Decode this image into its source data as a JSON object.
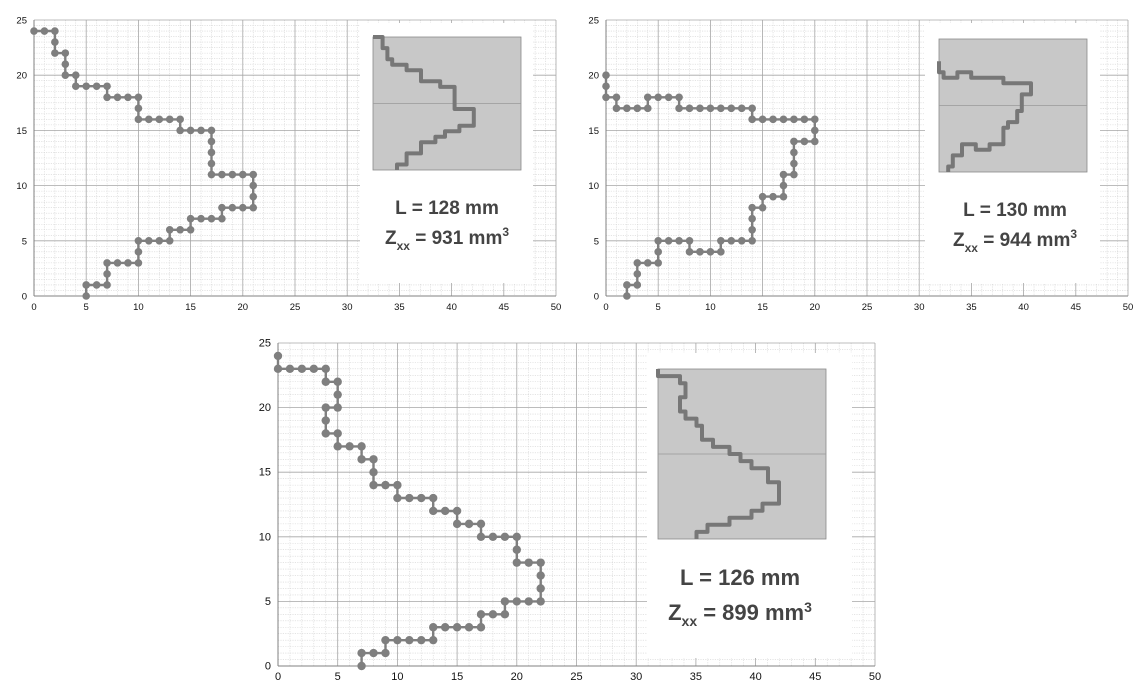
{
  "chart_data": [
    {
      "type": "scatter",
      "title": "",
      "xlabel": "",
      "ylabel": "",
      "xlim": [
        0,
        50
      ],
      "ylim": [
        0,
        25
      ],
      "x_ticks": [
        0,
        5,
        10,
        15,
        20,
        25,
        30,
        35,
        40,
        45,
        50
      ],
      "y_ticks": [
        0,
        5,
        10,
        15,
        20,
        25
      ],
      "grid": "minor gridlines every 1 unit",
      "series": [
        {
          "marker_color": "#7f7f7f",
          "points": [
            [
              0,
              24
            ],
            [
              1,
              24
            ],
            [
              2,
              24
            ],
            [
              2,
              23
            ],
            [
              2,
              22
            ],
            [
              3,
              22
            ],
            [
              3,
              21
            ],
            [
              3,
              20
            ],
            [
              4,
              20
            ],
            [
              4,
              19
            ],
            [
              5,
              19
            ],
            [
              6,
              19
            ],
            [
              7,
              19
            ],
            [
              7,
              18
            ],
            [
              8,
              18
            ],
            [
              9,
              18
            ],
            [
              10,
              18
            ],
            [
              10,
              17
            ],
            [
              10,
              16
            ],
            [
              11,
              16
            ],
            [
              12,
              16
            ],
            [
              13,
              16
            ],
            [
              14,
              16
            ],
            [
              14,
              15
            ],
            [
              15,
              15
            ],
            [
              16,
              15
            ],
            [
              17,
              15
            ],
            [
              17,
              14
            ],
            [
              17,
              13
            ],
            [
              17,
              12
            ],
            [
              17,
              11
            ],
            [
              18,
              11
            ],
            [
              19,
              11
            ],
            [
              20,
              11
            ],
            [
              21,
              11
            ],
            [
              21,
              10
            ],
            [
              21,
              9
            ],
            [
              21,
              8
            ],
            [
              20,
              8
            ],
            [
              19,
              8
            ],
            [
              18,
              8
            ],
            [
              18,
              7
            ],
            [
              17,
              7
            ],
            [
              16,
              7
            ],
            [
              15,
              7
            ],
            [
              15,
              6
            ],
            [
              14,
              6
            ],
            [
              13,
              6
            ],
            [
              13,
              5
            ],
            [
              12,
              5
            ],
            [
              11,
              5
            ],
            [
              10,
              5
            ],
            [
              10,
              4
            ],
            [
              10,
              3
            ],
            [
              9,
              3
            ],
            [
              8,
              3
            ],
            [
              7,
              3
            ],
            [
              7,
              2
            ],
            [
              7,
              1
            ],
            [
              6,
              1
            ],
            [
              5,
              1
            ],
            [
              5,
              0
            ]
          ]
        }
      ],
      "annotation": {
        "length_label": "L = 128 mm",
        "zxx_value": "931"
      }
    },
    {
      "type": "scatter",
      "title": "",
      "xlabel": "",
      "ylabel": "",
      "xlim": [
        0,
        50
      ],
      "ylim": [
        0,
        25
      ],
      "x_ticks": [
        0,
        5,
        10,
        15,
        20,
        25,
        30,
        35,
        40,
        45,
        50
      ],
      "y_ticks": [
        0,
        5,
        10,
        15,
        20,
        25
      ],
      "grid": "minor gridlines every 1 unit",
      "series": [
        {
          "marker_color": "#7f7f7f",
          "points": [
            [
              0,
              20
            ],
            [
              0,
              19
            ],
            [
              0,
              18
            ],
            [
              1,
              18
            ],
            [
              1,
              17
            ],
            [
              2,
              17
            ],
            [
              3,
              17
            ],
            [
              4,
              17
            ],
            [
              4,
              18
            ],
            [
              5,
              18
            ],
            [
              6,
              18
            ],
            [
              7,
              18
            ],
            [
              7,
              17
            ],
            [
              8,
              17
            ],
            [
              9,
              17
            ],
            [
              10,
              17
            ],
            [
              11,
              17
            ],
            [
              12,
              17
            ],
            [
              13,
              17
            ],
            [
              14,
              17
            ],
            [
              14,
              16
            ],
            [
              15,
              16
            ],
            [
              16,
              16
            ],
            [
              17,
              16
            ],
            [
              18,
              16
            ],
            [
              19,
              16
            ],
            [
              20,
              16
            ],
            [
              20,
              15
            ],
            [
              20,
              14
            ],
            [
              19,
              14
            ],
            [
              18,
              14
            ],
            [
              18,
              13
            ],
            [
              18,
              12
            ],
            [
              18,
              11
            ],
            [
              17,
              11
            ],
            [
              17,
              10
            ],
            [
              17,
              9
            ],
            [
              16,
              9
            ],
            [
              15,
              9
            ],
            [
              15,
              8
            ],
            [
              14,
              8
            ],
            [
              14,
              7
            ],
            [
              14,
              6
            ],
            [
              14,
              5
            ],
            [
              13,
              5
            ],
            [
              12,
              5
            ],
            [
              11,
              5
            ],
            [
              11,
              4
            ],
            [
              10,
              4
            ],
            [
              9,
              4
            ],
            [
              8,
              4
            ],
            [
              8,
              5
            ],
            [
              7,
              5
            ],
            [
              6,
              5
            ],
            [
              5,
              5
            ],
            [
              5,
              4
            ],
            [
              5,
              3
            ],
            [
              4,
              3
            ],
            [
              3,
              3
            ],
            [
              3,
              2
            ],
            [
              3,
              1
            ],
            [
              2,
              1
            ],
            [
              2,
              0
            ]
          ]
        }
      ],
      "annotation": {
        "length_label": "L = 130 mm",
        "zxx_value": "944"
      }
    },
    {
      "type": "scatter",
      "title": "",
      "xlabel": "",
      "ylabel": "",
      "xlim": [
        0,
        50
      ],
      "ylim": [
        0,
        25
      ],
      "x_ticks": [
        0,
        5,
        10,
        15,
        20,
        25,
        30,
        35,
        40,
        45,
        50
      ],
      "y_ticks": [
        0,
        5,
        10,
        15,
        20,
        25
      ],
      "grid": "minor gridlines every 1 unit",
      "series": [
        {
          "marker_color": "#7f7f7f",
          "points": [
            [
              0,
              24
            ],
            [
              0,
              23
            ],
            [
              1,
              23
            ],
            [
              2,
              23
            ],
            [
              3,
              23
            ],
            [
              4,
              23
            ],
            [
              4,
              22
            ],
            [
              5,
              22
            ],
            [
              5,
              21
            ],
            [
              5,
              20
            ],
            [
              4,
              20
            ],
            [
              4,
              19
            ],
            [
              4,
              18
            ],
            [
              5,
              18
            ],
            [
              5,
              17
            ],
            [
              6,
              17
            ],
            [
              7,
              17
            ],
            [
              7,
              16
            ],
            [
              8,
              16
            ],
            [
              8,
              15
            ],
            [
              8,
              14
            ],
            [
              9,
              14
            ],
            [
              10,
              14
            ],
            [
              10,
              13
            ],
            [
              11,
              13
            ],
            [
              12,
              13
            ],
            [
              13,
              13
            ],
            [
              13,
              12
            ],
            [
              14,
              12
            ],
            [
              15,
              12
            ],
            [
              15,
              11
            ],
            [
              16,
              11
            ],
            [
              17,
              11
            ],
            [
              17,
              10
            ],
            [
              18,
              10
            ],
            [
              19,
              10
            ],
            [
              20,
              10
            ],
            [
              20,
              9
            ],
            [
              20,
              8
            ],
            [
              21,
              8
            ],
            [
              22,
              8
            ],
            [
              22,
              7
            ],
            [
              22,
              6
            ],
            [
              22,
              5
            ],
            [
              21,
              5
            ],
            [
              20,
              5
            ],
            [
              19,
              5
            ],
            [
              19,
              4
            ],
            [
              18,
              4
            ],
            [
              17,
              4
            ],
            [
              17,
              3
            ],
            [
              16,
              3
            ],
            [
              15,
              3
            ],
            [
              14,
              3
            ],
            [
              13,
              3
            ],
            [
              13,
              2
            ],
            [
              12,
              2
            ],
            [
              11,
              2
            ],
            [
              10,
              2
            ],
            [
              9,
              2
            ],
            [
              9,
              1
            ],
            [
              8,
              1
            ],
            [
              7,
              1
            ],
            [
              7,
              0
            ]
          ]
        }
      ],
      "annotation": {
        "length_label": "L = 126 mm",
        "zxx_value": "899"
      }
    }
  ],
  "annotation_text": {
    "z_letter": "Z",
    "z_subscript": "xx",
    "equals": "=",
    "unit_base": "mm",
    "unit_exponent": "3"
  },
  "colors": {
    "marker": "#7f7f7f",
    "major_grid": "#a6a6a6",
    "minor_grid": "#d4d4d4",
    "inset_fill": "#c8c8c8",
    "annotation_text": "#444444"
  }
}
